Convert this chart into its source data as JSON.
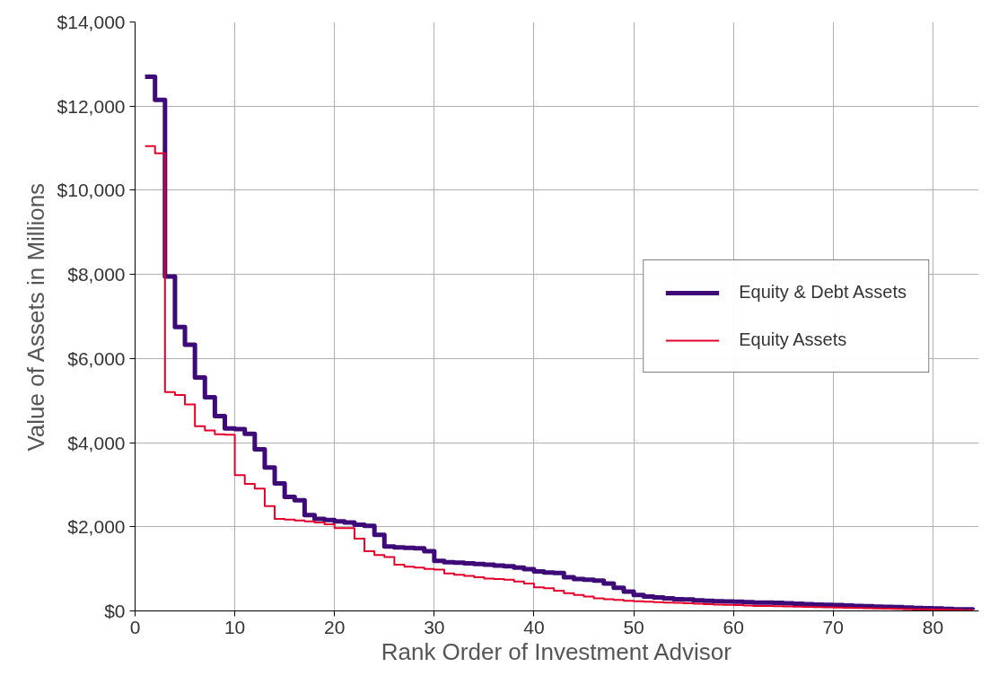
{
  "chart_data": {
    "type": "step",
    "xlabel": "Rank Order of Investment Advisor",
    "ylabel": "Value of Assets in Millions",
    "x": [
      1,
      2,
      3,
      4,
      5,
      6,
      7,
      8,
      9,
      10,
      11,
      12,
      13,
      14,
      15,
      16,
      17,
      18,
      19,
      20,
      21,
      22,
      23,
      24,
      25,
      26,
      27,
      28,
      29,
      30,
      31,
      32,
      33,
      34,
      35,
      36,
      37,
      38,
      39,
      40,
      41,
      42,
      43,
      44,
      45,
      46,
      47,
      48,
      49,
      50,
      51,
      52,
      53,
      54,
      55,
      56,
      57,
      58,
      59,
      60,
      61,
      62,
      63,
      64,
      65,
      66,
      67,
      68,
      69,
      70,
      71,
      72,
      73,
      74,
      75,
      76,
      77,
      78,
      79,
      80,
      81,
      82,
      83,
      84
    ],
    "series": [
      {
        "name": "Equity & Debt Assets",
        "color": "#3d0a78",
        "values": [
          12700,
          12150,
          7950,
          6750,
          6330,
          5550,
          5080,
          4630,
          4340,
          4320,
          4210,
          3840,
          3410,
          3030,
          2710,
          2630,
          2280,
          2190,
          2160,
          2130,
          2100,
          2050,
          2020,
          1810,
          1530,
          1510,
          1500,
          1490,
          1420,
          1190,
          1160,
          1145,
          1130,
          1115,
          1100,
          1080,
          1060,
          1030,
          990,
          940,
          910,
          900,
          800,
          760,
          740,
          720,
          650,
          550,
          460,
          380,
          340,
          320,
          300,
          280,
          270,
          250,
          240,
          230,
          225,
          220,
          210,
          200,
          195,
          190,
          180,
          170,
          160,
          150,
          145,
          140,
          130,
          120,
          110,
          100,
          95,
          90,
          80,
          70,
          65,
          60,
          50,
          40,
          35,
          30
        ]
      },
      {
        "name": "Equity Assets",
        "color": "#e4002b",
        "values": [
          11050,
          10880,
          5200,
          5130,
          4910,
          4390,
          4290,
          4200,
          4190,
          3230,
          3020,
          2910,
          2490,
          2190,
          2170,
          2150,
          2130,
          2100,
          2060,
          1970,
          1970,
          1720,
          1420,
          1330,
          1280,
          1100,
          1050,
          1030,
          1000,
          980,
          890,
          860,
          830,
          800,
          770,
          760,
          740,
          700,
          650,
          560,
          540,
          480,
          420,
          380,
          340,
          300,
          280,
          260,
          240,
          230,
          220,
          210,
          200,
          190,
          180,
          170,
          160,
          150,
          145,
          140,
          130,
          120,
          115,
          110,
          105,
          100,
          95,
          90,
          85,
          80,
          75,
          70,
          65,
          60,
          55,
          50,
          45,
          40,
          35,
          30,
          25,
          20,
          15,
          10
        ]
      }
    ],
    "xlim": [
      0,
      84.6
    ],
    "xticks": [
      0,
      10,
      20,
      30,
      40,
      50,
      60,
      70,
      80
    ],
    "ylim": [
      0,
      14000
    ],
    "yticks": [
      {
        "value": 0,
        "label": "$0"
      },
      {
        "value": 2000,
        "label": "$2,000"
      },
      {
        "value": 4000,
        "label": "$4,000"
      },
      {
        "value": 6000,
        "label": "$6,000"
      },
      {
        "value": 8000,
        "label": "$8,000"
      },
      {
        "value": 10000,
        "label": "$10,000"
      },
      {
        "value": 12000,
        "label": "$12,000"
      },
      {
        "value": 14000,
        "label": "$14,000"
      }
    ],
    "grid": true,
    "legend": "right"
  }
}
